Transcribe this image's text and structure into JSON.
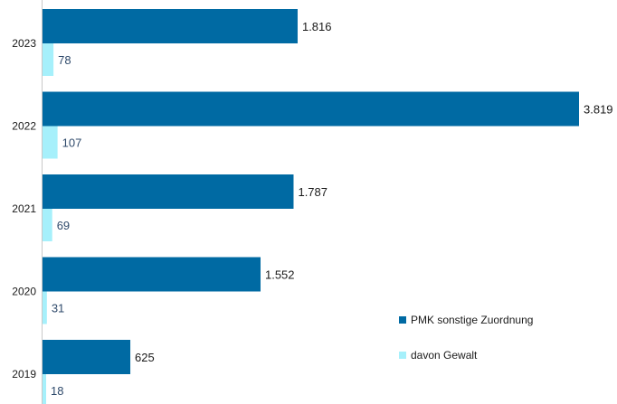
{
  "colors": {
    "primary": "#006aa3",
    "secondary": "#a6f0fb",
    "axis": "#c8c8c8"
  },
  "chart_data": {
    "type": "bar",
    "orientation": "horizontal",
    "categories": [
      "2023",
      "2022",
      "2021",
      "2020",
      "2019"
    ],
    "series": [
      {
        "name": "PMK sonstige Zuordnung",
        "values": [
          1816,
          3819,
          1787,
          1552,
          625
        ],
        "labels": [
          "1.816",
          "3.819",
          "1.787",
          "1.552",
          "625"
        ]
      },
      {
        "name": "davon Gewalt",
        "values": [
          78,
          107,
          69,
          31,
          18
        ],
        "labels": [
          "78",
          "107",
          "69",
          "31",
          "18"
        ]
      }
    ],
    "xlim": [
      0,
      3819
    ],
    "grid": false,
    "legend": "bottom-right"
  }
}
